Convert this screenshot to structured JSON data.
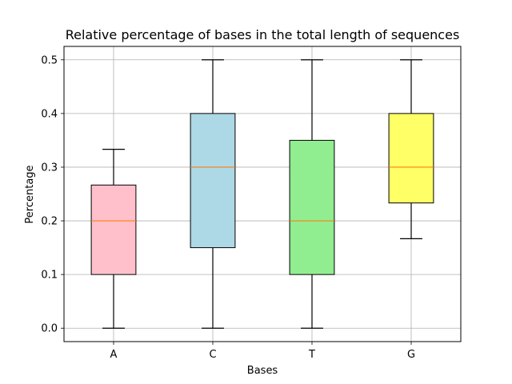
{
  "chart_data": {
    "type": "box",
    "title": "Relative percentage of bases in the total length of sequences",
    "xlabel": "Bases",
    "ylabel": "Percentage",
    "ylim": [
      -0.025,
      0.525
    ],
    "grid": true,
    "categories": [
      "A",
      "C",
      "T",
      "G"
    ],
    "yticks": [
      "0.0",
      "0.1",
      "0.2",
      "0.3",
      "0.4",
      "0.5"
    ],
    "median_color": "#ff7f0e",
    "boxes": [
      {
        "label": "A",
        "whisker_low": 0.0,
        "q1": 0.1,
        "median": 0.2,
        "q3": 0.2667,
        "whisker_high": 0.3333,
        "color": "#ffc0cb"
      },
      {
        "label": "C",
        "whisker_low": 0.0,
        "q1": 0.15,
        "median": 0.3,
        "q3": 0.4,
        "whisker_high": 0.5,
        "color": "#add8e6"
      },
      {
        "label": "T",
        "whisker_low": 0.0,
        "q1": 0.1,
        "median": 0.2,
        "q3": 0.35,
        "whisker_high": 0.5,
        "color": "#90ee90"
      },
      {
        "label": "G",
        "whisker_low": 0.1667,
        "q1": 0.2333,
        "median": 0.3,
        "q3": 0.4,
        "whisker_high": 0.5,
        "color": "#ffff66"
      }
    ]
  }
}
